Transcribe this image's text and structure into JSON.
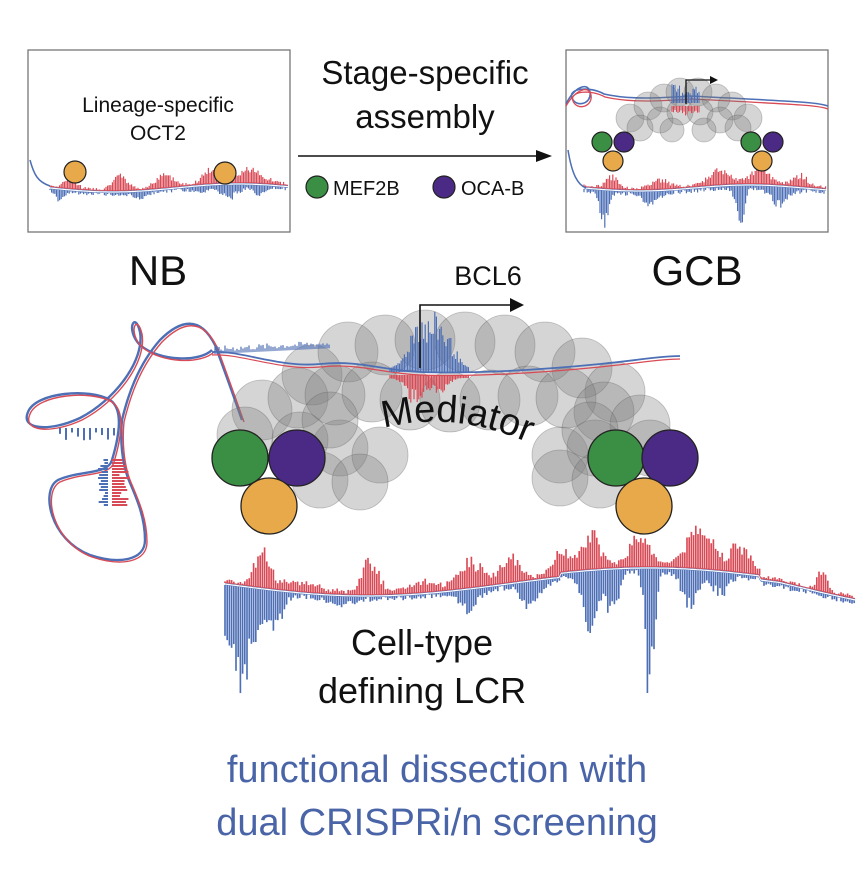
{
  "panel_nb": {
    "title_line1": "Lineage-specific",
    "title_line2": "OCT2",
    "stage_label": "NB"
  },
  "transition": {
    "title_line1": "Stage-specific",
    "title_line2": "assembly",
    "legend": [
      {
        "name": "MEF2B",
        "color": "#3a8f45"
      },
      {
        "name": "OCA-B",
        "color": "#4b2a85"
      }
    ]
  },
  "panel_gcb": {
    "stage_label": "GCB"
  },
  "main": {
    "gene_label": "BCL6",
    "complex_label": "Mediator",
    "lcr_line1": "Cell-type",
    "lcr_line2": "defining LCR"
  },
  "footer": {
    "line1": "functional dissection with",
    "line2": "dual CRISPRi/n screening"
  },
  "colors": {
    "oct2": "#e8a94a",
    "mef2b": "#3a8f45",
    "ocab": "#4b2a85",
    "positive_strand": "#d84a55",
    "negative_strand": "#4d6fb5",
    "footer_text": "#4a64a8",
    "mediator": "#8a8a8a"
  }
}
